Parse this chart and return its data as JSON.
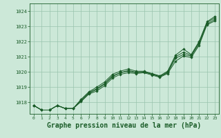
{
  "bg_color": "#cce8d8",
  "grid_color": "#99c4ad",
  "line_color": "#1a5c28",
  "marker_color": "#1a5c28",
  "title": "Graphe pression niveau de la mer (hPa)",
  "xlim": [
    -0.5,
    23.5
  ],
  "ylim": [
    1017.25,
    1024.5
  ],
  "yticks": [
    1018,
    1019,
    1020,
    1021,
    1022,
    1023,
    1024
  ],
  "xticks": [
    0,
    1,
    2,
    3,
    4,
    5,
    6,
    7,
    8,
    9,
    10,
    11,
    12,
    13,
    14,
    15,
    16,
    17,
    18,
    19,
    20,
    21,
    22,
    23
  ],
  "series": [
    [
      1017.8,
      1017.5,
      1017.5,
      1017.8,
      1017.6,
      1017.6,
      1018.2,
      1018.7,
      1019.0,
      1019.35,
      1019.85,
      1020.05,
      1020.2,
      1020.05,
      1020.05,
      1019.9,
      1019.75,
      1020.05,
      1021.1,
      1021.5,
      1021.15,
      1022.0,
      1023.3,
      1023.65
    ],
    [
      1017.8,
      1017.5,
      1017.5,
      1017.8,
      1017.6,
      1017.6,
      1018.1,
      1018.6,
      1018.85,
      1019.2,
      1019.7,
      1019.95,
      1020.05,
      1019.95,
      1020.0,
      1019.85,
      1019.7,
      1019.95,
      1020.9,
      1021.15,
      1021.05,
      1021.85,
      1023.15,
      1023.45
    ],
    [
      1017.8,
      1017.5,
      1017.5,
      1017.8,
      1017.6,
      1017.6,
      1018.05,
      1018.55,
      1018.75,
      1019.1,
      1019.6,
      1019.85,
      1019.95,
      1019.9,
      1019.95,
      1019.8,
      1019.65,
      1019.9,
      1020.7,
      1021.05,
      1020.95,
      1021.75,
      1023.1,
      1023.35
    ],
    [
      1017.8,
      1017.5,
      1017.5,
      1017.8,
      1017.6,
      1017.6,
      1018.15,
      1018.65,
      1018.9,
      1019.25,
      1019.75,
      1019.95,
      1020.1,
      1019.98,
      1020.02,
      1019.87,
      1019.7,
      1020.0,
      1021.0,
      1021.3,
      1021.1,
      1021.95,
      1023.25,
      1023.55
    ]
  ]
}
